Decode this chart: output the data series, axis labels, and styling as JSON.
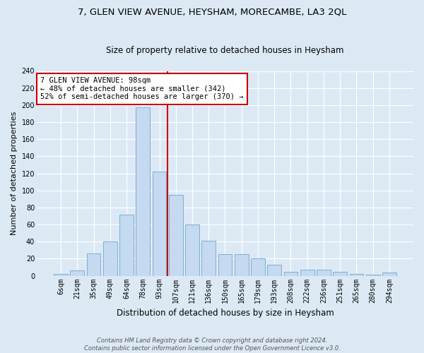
{
  "title1": "7, GLEN VIEW AVENUE, HEYSHAM, MORECAMBE, LA3 2QL",
  "title2": "Size of property relative to detached houses in Heysham",
  "xlabel": "Distribution of detached houses by size in Heysham",
  "ylabel": "Number of detached properties",
  "categories": [
    "6sqm",
    "21sqm",
    "35sqm",
    "49sqm",
    "64sqm",
    "78sqm",
    "93sqm",
    "107sqm",
    "121sqm",
    "136sqm",
    "150sqm",
    "165sqm",
    "179sqm",
    "193sqm",
    "208sqm",
    "222sqm",
    "236sqm",
    "251sqm",
    "265sqm",
    "280sqm",
    "294sqm"
  ],
  "values": [
    2,
    6,
    26,
    40,
    72,
    197,
    122,
    95,
    60,
    41,
    25,
    25,
    20,
    13,
    5,
    7,
    7,
    5,
    2,
    1,
    4
  ],
  "bar_color": "#c5d9f0",
  "bar_edge_color": "#7bafd4",
  "vline_x": 6.5,
  "vline_color": "#cc0000",
  "annotation_text": "7 GLEN VIEW AVENUE: 98sqm\n← 48% of detached houses are smaller (342)\n52% of semi-detached houses are larger (370) →",
  "annotation_box_color": "#ffffff",
  "annotation_box_edge": "#cc0000",
  "ylim": [
    0,
    240
  ],
  "yticks": [
    0,
    20,
    40,
    60,
    80,
    100,
    120,
    140,
    160,
    180,
    200,
    220,
    240
  ],
  "footer": "Contains HM Land Registry data © Crown copyright and database right 2024.\nContains public sector information licensed under the Open Government Licence v3.0.",
  "bg_color": "#dce9f5",
  "plot_bg_color": "#dce9f5",
  "grid_color": "#ffffff",
  "title1_fontsize": 9.5,
  "title2_fontsize": 8.5,
  "xlabel_fontsize": 8.5,
  "ylabel_fontsize": 8,
  "tick_fontsize": 7,
  "ann_fontsize": 7.5,
  "footer_fontsize": 6
}
